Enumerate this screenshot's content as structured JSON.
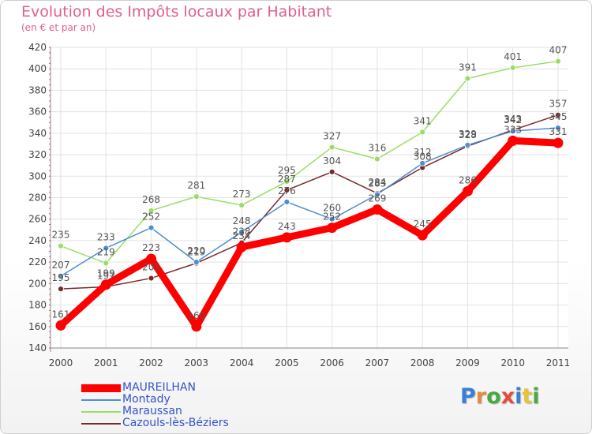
{
  "header": {
    "title": "Evolution des Impôts locaux par Habitant",
    "subtitle": "(en € et par an)"
  },
  "logo": {
    "letters": [
      "P",
      "r",
      "o",
      "x",
      "i",
      "t",
      "i"
    ],
    "colors": [
      "#3a7fd5",
      "#e8893a",
      "#4aa843",
      "#e84b3a",
      "#3a7fd5",
      "#e8c23a",
      "#4aa843"
    ]
  },
  "chart_data": {
    "type": "line",
    "title": "Evolution des Impôts locaux par Habitant",
    "subtitle": "(en € et par an)",
    "xlabel": "",
    "ylabel": "",
    "ylim": [
      140,
      420
    ],
    "y_ticks": [
      140,
      160,
      180,
      200,
      220,
      240,
      260,
      280,
      300,
      320,
      340,
      360,
      380,
      400,
      420
    ],
    "grid": true,
    "categories": [
      "2000",
      "2001",
      "2002",
      "2003",
      "2004",
      "2005",
      "2006",
      "2007",
      "2008",
      "2009",
      "2010",
      "2011"
    ],
    "series": [
      {
        "name": "MAUREILHAN",
        "color": "#ff0000",
        "values": [
          161,
          199,
          223,
          160,
          234,
          243,
          252,
          269,
          245,
          286,
          333,
          331
        ],
        "labels": [
          "161",
          "199",
          "223",
          "160",
          "234",
          "243",
          "252",
          "269",
          "245",
          "286",
          "333",
          "331"
        ]
      },
      {
        "name": "Montady",
        "color": "#4d8fd0",
        "values": [
          207,
          233,
          252,
          220,
          248,
          276,
          260,
          283,
          312,
          329,
          342,
          345
        ],
        "labels": [
          "207",
          "233",
          "252",
          "220",
          "248",
          "276",
          "260",
          "283",
          "312",
          "329",
          "342",
          "345"
        ]
      },
      {
        "name": "Maraussan",
        "color": "#99dd66",
        "values": [
          235,
          219,
          268,
          281,
          273,
          295,
          327,
          316,
          341,
          391,
          401,
          407
        ],
        "labels": [
          "235",
          "219",
          "268",
          "281",
          "273",
          "295",
          "327",
          "316",
          "341",
          "391",
          "401",
          "407"
        ]
      },
      {
        "name": "Cazouls-lès-Béziers",
        "color": "#7a2a2a",
        "values": [
          195,
          197,
          205,
          219,
          238,
          287,
          304,
          284,
          308,
          328,
          343,
          357
        ],
        "labels": [
          "195",
          "197",
          "205",
          "219",
          "238",
          "287",
          "304",
          "284",
          "308",
          "328",
          "343",
          "357"
        ]
      }
    ],
    "legend_position": "bottom-left"
  }
}
